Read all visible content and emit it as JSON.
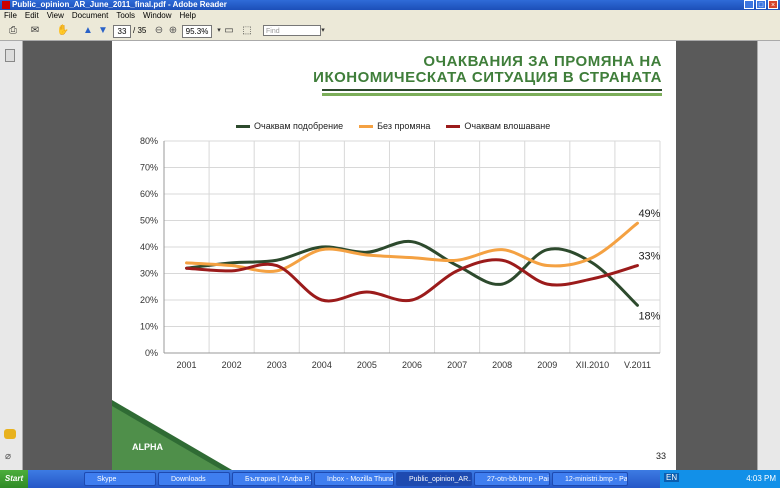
{
  "window": {
    "title": "Public_opinion_AR_June_2011_final.pdf - Adobe Reader"
  },
  "menu": [
    "File",
    "Edit",
    "View",
    "Document",
    "Tools",
    "Window",
    "Help"
  ],
  "toolbar": {
    "page_current": "33",
    "page_total": "/ 35",
    "zoom": "95.3%",
    "find_placeholder": "Find"
  },
  "slide": {
    "title_line1": "ОЧАКВАНИЯ ЗА ПРОМЯНА НА",
    "title_line2": "ИКОНОМИЧЕСКАТА СИТУАЦИЯ В СТРАНАТА",
    "page_number": "33"
  },
  "chart_data": {
    "type": "line",
    "categories": [
      "2001",
      "2002",
      "2003",
      "2004",
      "2005",
      "2006",
      "2007",
      "2008",
      "2009",
      "XII.2010",
      "V.2011"
    ],
    "yticks": [
      "0%",
      "10%",
      "20%",
      "30%",
      "40%",
      "50%",
      "60%",
      "70%",
      "80%"
    ],
    "ylim": [
      0,
      80
    ],
    "grid": true,
    "legend": "top",
    "series": [
      {
        "name": "Очаквам подобрение",
        "color": "#2d4a2d",
        "values": [
          32,
          34,
          35,
          40,
          38,
          42,
          33,
          26,
          39,
          34,
          18
        ],
        "end_label": "18%"
      },
      {
        "name": "Без промяна",
        "color": "#f4a142",
        "values": [
          34,
          33,
          31,
          39,
          37,
          36,
          35,
          39,
          33,
          36,
          49
        ],
        "end_label": "49%"
      },
      {
        "name": "Очаквам влошаване",
        "color": "#9b1b1b",
        "values": [
          32,
          31,
          33,
          20,
          23,
          20,
          31,
          35,
          26,
          28,
          33
        ],
        "end_label": "33%"
      }
    ]
  },
  "taskbar": {
    "start": "Start",
    "tasks": [
      "Skype",
      "Downloads",
      "България | \"Алфа Р...",
      "Inbox - Mozilla Thund...",
      "Public_opinion_AR...",
      "27-otn-bb.bmp - Paint",
      "12-ministri.bmp - Paint"
    ],
    "lang": "EN",
    "clock": "4:03 PM"
  }
}
